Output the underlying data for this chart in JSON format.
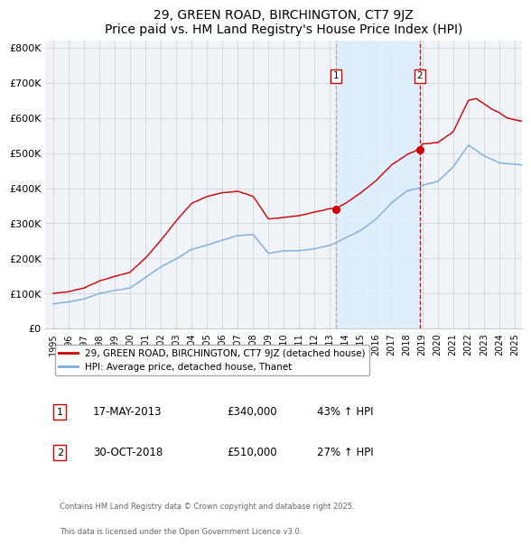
{
  "title": "29, GREEN ROAD, BIRCHINGTON, CT7 9JZ",
  "subtitle": "Price paid vs. HM Land Registry's House Price Index (HPI)",
  "legend_label_red": "29, GREEN ROAD, BIRCHINGTON, CT7 9JZ (detached house)",
  "legend_label_blue": "HPI: Average price, detached house, Thanet",
  "sale1_date": "17-MAY-2013",
  "sale1_price": 340000,
  "sale1_pct": "43% ↑ HPI",
  "sale1_year": 2013.37,
  "sale2_date": "30-OCT-2018",
  "sale2_price": 510000,
  "sale2_pct": "27% ↑ HPI",
  "sale2_year": 2018.83,
  "footer": "Contains HM Land Registry data © Crown copyright and database right 2025.\nThis data is licensed under the Open Government Licence v3.0.",
  "ylim": [
    0,
    820000
  ],
  "yticks": [
    0,
    100000,
    200000,
    300000,
    400000,
    500000,
    600000,
    700000,
    800000
  ],
  "ytick_labels": [
    "£0",
    "£100K",
    "£200K",
    "£300K",
    "£400K",
    "£500K",
    "£600K",
    "£700K",
    "£800K"
  ],
  "xlim": [
    1994.5,
    2025.5
  ],
  "xticks": [
    1995,
    1996,
    1997,
    1998,
    1999,
    2000,
    2001,
    2002,
    2003,
    2004,
    2005,
    2006,
    2007,
    2008,
    2009,
    2010,
    2011,
    2012,
    2013,
    2014,
    2015,
    2016,
    2017,
    2018,
    2019,
    2020,
    2021,
    2022,
    2023,
    2024,
    2025
  ],
  "color_red": "#cc0000",
  "color_blue": "#7aaddc",
  "color_shade": "#ddeeff",
  "bg_color": "#f0f4f8",
  "grid_color": "#cccccc"
}
